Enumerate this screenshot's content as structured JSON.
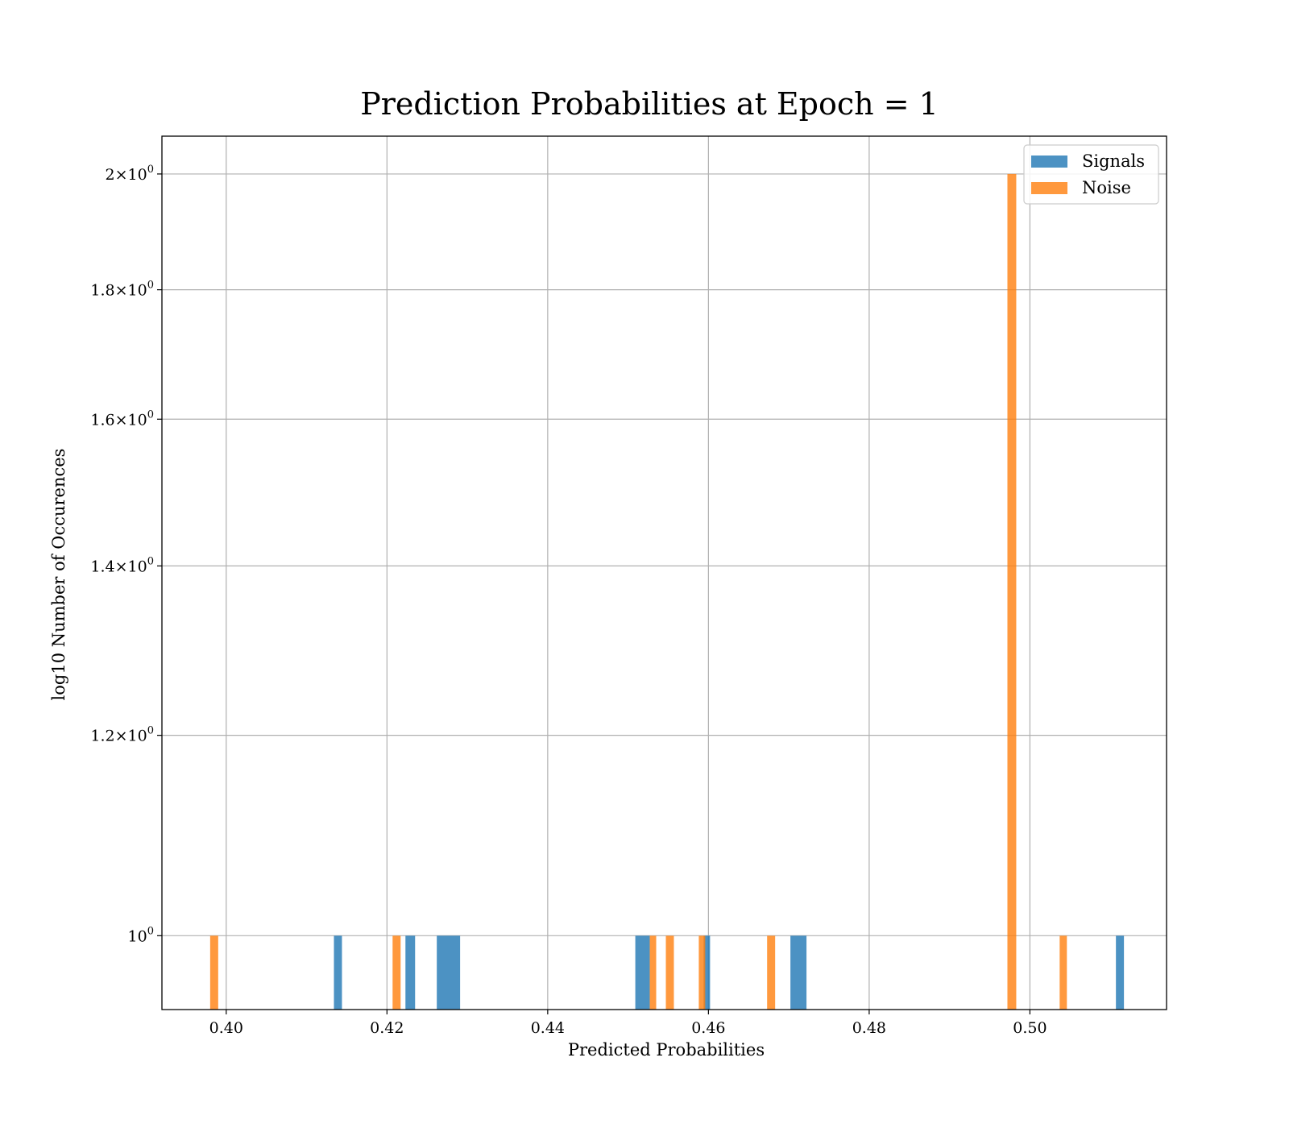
{
  "chart_data": {
    "type": "bar",
    "title": "Prediction Probabilities at Epoch = 1",
    "xlabel": "Predicted Probabilities",
    "ylabel": "log10 Number of Occurences",
    "xlim": [
      0.392,
      0.517
    ],
    "ylim": [
      0.935,
      2.07
    ],
    "yscale": "log",
    "grid": true,
    "legend_position": "top-right",
    "x_ticks": [
      {
        "value": 0.4,
        "label": "0.40"
      },
      {
        "value": 0.42,
        "label": "0.42"
      },
      {
        "value": 0.44,
        "label": "0.44"
      },
      {
        "value": 0.46,
        "label": "0.46"
      },
      {
        "value": 0.48,
        "label": "0.48"
      },
      {
        "value": 0.5,
        "label": "0.50"
      }
    ],
    "y_ticks": [
      {
        "value": 1.0,
        "mantissa": "",
        "exp": "0"
      },
      {
        "value": 1.2,
        "mantissa": "1.2",
        "exp": "0"
      },
      {
        "value": 1.4,
        "mantissa": "1.4",
        "exp": "0"
      },
      {
        "value": 1.6,
        "mantissa": "1.6",
        "exp": "0"
      },
      {
        "value": 1.8,
        "mantissa": "1.8",
        "exp": "0"
      },
      {
        "value": 2.0,
        "mantissa": "2",
        "exp": "0"
      }
    ],
    "series": [
      {
        "name": "Signals",
        "color": "#1f77b4",
        "bars": [
          {
            "x0": 0.4134,
            "x1": 0.4144,
            "count": 1
          },
          {
            "x0": 0.4223,
            "x1": 0.4235,
            "count": 1
          },
          {
            "x0": 0.4262,
            "x1": 0.4291,
            "count": 1
          },
          {
            "x0": 0.4509,
            "x1": 0.4527,
            "count": 1
          },
          {
            "x0": 0.4594,
            "x1": 0.4602,
            "count": 1
          },
          {
            "x0": 0.4702,
            "x1": 0.4722,
            "count": 1
          },
          {
            "x0": 0.5107,
            "x1": 0.5117,
            "count": 1
          }
        ]
      },
      {
        "name": "Noise",
        "color": "#ff7f0e",
        "bars": [
          {
            "x0": 0.398,
            "x1": 0.399,
            "count": 1
          },
          {
            "x0": 0.4207,
            "x1": 0.4217,
            "count": 1
          },
          {
            "x0": 0.4527,
            "x1": 0.4535,
            "count": 1
          },
          {
            "x0": 0.4547,
            "x1": 0.4557,
            "count": 1
          },
          {
            "x0": 0.4588,
            "x1": 0.4596,
            "count": 1
          },
          {
            "x0": 0.4673,
            "x1": 0.4683,
            "count": 1
          },
          {
            "x0": 0.4972,
            "x1": 0.4983,
            "count": 2
          },
          {
            "x0": 0.5037,
            "x1": 0.5046,
            "count": 1
          }
        ]
      }
    ]
  }
}
